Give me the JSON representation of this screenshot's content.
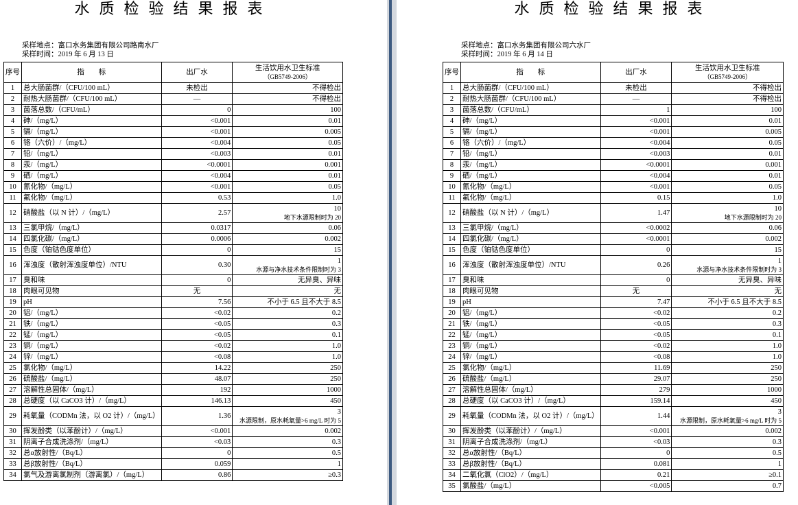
{
  "reports": [
    {
      "title": "水质检验结果报表",
      "location": "采样地点：富口水务集团有限公司路南水厂",
      "time": "采样时间：2019 年 6 月 13 日",
      "header": [
        "序号",
        "指　　标",
        "出厂水",
        [
          "生活饮用水卫生标准",
          "（GB5749-2006）"
        ]
      ],
      "rows": [
        [
          1,
          "总大肠菌群/（CFU/100 mL）",
          "未检出",
          "不得检出"
        ],
        [
          2,
          "耐热大肠菌群/（CFU/100 mL）",
          "—",
          "不得检出"
        ],
        [
          3,
          "菌落总数/（CFU/mL）",
          "0",
          "100"
        ],
        [
          4,
          "砷/（mg/L）",
          "<0.001",
          "0.01"
        ],
        [
          5,
          "镉/（mg/L）",
          "<0.001",
          "0.005"
        ],
        [
          6,
          "铬（六价）/（mg/L）",
          "<0.004",
          "0.05"
        ],
        [
          7,
          "铅/（mg/L）",
          "<0.003",
          "0.01"
        ],
        [
          8,
          "汞/（mg/L）",
          "<0.0001",
          "0.001"
        ],
        [
          9,
          "硒/（mg/L）",
          "<0.004",
          "0.01"
        ],
        [
          10,
          "氰化物/（mg/L）",
          "<0.001",
          "0.05"
        ],
        [
          11,
          "氟化物/（mg/L）",
          "0.53",
          "1.0"
        ],
        [
          12,
          "硝酸盐（以 N 计）/（mg/L）",
          "2.57",
          [
            "10",
            "地下水源限制时为 20"
          ]
        ],
        [
          13,
          "三氯甲烷/（mg/L）",
          "0.0317",
          "0.06"
        ],
        [
          14,
          "四氯化碳/（mg/L）",
          "0.0006",
          "0.002"
        ],
        [
          15,
          "色度（铂钴色度单位）",
          "0",
          "15"
        ],
        [
          16,
          "浑浊度（散射浑浊度单位）/NTU",
          "0.30",
          [
            "1",
            "水源与净水技术条件限制时为 3"
          ]
        ],
        [
          17,
          "臭和味",
          "0",
          "无异臭、异味"
        ],
        [
          18,
          "肉眼可见物",
          "无",
          "无"
        ],
        [
          19,
          "pH",
          "7.56",
          "不小于 6.5 且不大于 8.5"
        ],
        [
          20,
          "铝/（mg/L）",
          "<0.02",
          "0.2"
        ],
        [
          21,
          "铁/（mg/L）",
          "<0.05",
          "0.3"
        ],
        [
          22,
          "锰/（mg/L）",
          "<0.05",
          "0.1"
        ],
        [
          23,
          "铜/（mg/L）",
          "<0.02",
          "1.0"
        ],
        [
          24,
          "锌/（mg/L）",
          "<0.08",
          "1.0"
        ],
        [
          25,
          "氯化物/（mg/L）",
          "14.22",
          "250"
        ],
        [
          26,
          "硫酸盐/（mg/L）",
          "48.07",
          "250"
        ],
        [
          27,
          "溶解性总固体/（mg/L）",
          "192",
          "1000"
        ],
        [
          28,
          "总硬度（以 CaCO3 计）/（mg/L）",
          "146.13",
          "450"
        ],
        [
          29,
          "耗氧量（CODMn 法，以 O2 计）/（mg/L）",
          "1.36",
          [
            "3",
            "水源限制，原水耗氧量>6 mg/L 时为 5"
          ]
        ],
        [
          30,
          "挥发酚类（以苯酚计）/（mg/L）",
          "<0.001",
          "0.002"
        ],
        [
          31,
          "阴离子合成洗涤剂/（mg/L）",
          "<0.03",
          "0.3"
        ],
        [
          32,
          "总α放射性/（Bq/L）",
          "0",
          "0.5"
        ],
        [
          33,
          "总β放射性/（Bq/L）",
          "0.059",
          "1"
        ],
        [
          34,
          "氯气及游离氯制剂（游离氯）/（mg/L）",
          "0.86",
          "≥0.3"
        ]
      ]
    },
    {
      "title": "水质检验结果报表",
      "location": "采样地点：富口水务集团有限公司六水厂",
      "time": "采样时间：2019 年 6 月 14 日",
      "header": [
        "序号",
        "指　　标",
        "出厂水",
        [
          "生活饮用水卫生标准",
          "（GB5749-2006）"
        ]
      ],
      "rows": [
        [
          1,
          "总大肠菌群/（CFU/100 mL）",
          "未检出",
          "不得检出"
        ],
        [
          2,
          "耐热大肠菌群/（CFU/100 mL）",
          "—",
          "不得检出"
        ],
        [
          3,
          "菌落总数/（CFU/mL）",
          "1",
          "100"
        ],
        [
          4,
          "砷/（mg/L）",
          "<0.001",
          "0.01"
        ],
        [
          5,
          "镉/（mg/L）",
          "<0.001",
          "0.005"
        ],
        [
          6,
          "铬（六价）/（mg/L）",
          "<0.004",
          "0.05"
        ],
        [
          7,
          "铅/（mg/L）",
          "<0.003",
          "0.01"
        ],
        [
          8,
          "汞/（mg/L）",
          "<0.0001",
          "0.001"
        ],
        [
          9,
          "硒/（mg/L）",
          "<0.004",
          "0.01"
        ],
        [
          10,
          "氰化物/（mg/L）",
          "<0.001",
          "0.05"
        ],
        [
          11,
          "氟化物/（mg/L）",
          "0.15",
          "1.0"
        ],
        [
          12,
          "硝酸盐（以 N 计）/（mg/L）",
          "1.47",
          [
            "10",
            "地下水源限制时为 20"
          ]
        ],
        [
          13,
          "三氯甲烷/（mg/L）",
          "<0.0002",
          "0.06"
        ],
        [
          14,
          "四氯化碳/（mg/L）",
          "<0.0001",
          "0.002"
        ],
        [
          15,
          "色度（铂钴色度单位）",
          "0",
          "15"
        ],
        [
          16,
          "浑浊度（散射浑浊度单位）/NTU",
          "0.26",
          [
            "1",
            "水源与净水技术条件限制时为 3"
          ]
        ],
        [
          17,
          "臭和味",
          "0",
          "无异臭、异味"
        ],
        [
          18,
          "肉眼可见物",
          "无",
          "无"
        ],
        [
          19,
          "pH",
          "7.47",
          "不小于 6.5 且不大于 8.5"
        ],
        [
          20,
          "铝/（mg/L）",
          "<0.02",
          "0.2"
        ],
        [
          21,
          "铁/（mg/L）",
          "<0.05",
          "0.3"
        ],
        [
          22,
          "锰/（mg/L）",
          "<0.05",
          "0.1"
        ],
        [
          23,
          "铜/（mg/L）",
          "<0.02",
          "1.0"
        ],
        [
          24,
          "锌/（mg/L）",
          "<0.08",
          "1.0"
        ],
        [
          25,
          "氯化物/（mg/L）",
          "11.69",
          "250"
        ],
        [
          26,
          "硫酸盐/（mg/L）",
          "29.07",
          "250"
        ],
        [
          27,
          "溶解性总固体/（mg/L）",
          "279",
          "1000"
        ],
        [
          28,
          "总硬度（以 CaCO3 计）/（mg/L）",
          "159.14",
          "450"
        ],
        [
          29,
          "耗氧量（CODMn 法，以 O2 计）/（mg/L）",
          "1.44",
          [
            "3",
            "水源限制，原水耗氧量>6 mg/L 时为 5"
          ]
        ],
        [
          30,
          "挥发酚类（以苯酚计）/（mg/L）",
          "<0.001",
          "0.002"
        ],
        [
          31,
          "阴离子合成洗涤剂/（mg/L）",
          "<0.03",
          "0.3"
        ],
        [
          32,
          "总α放射性/（Bq/L）",
          "0",
          "0.5"
        ],
        [
          33,
          "总β放射性/（Bq/L）",
          "0.081",
          "1"
        ],
        [
          34,
          "二氧化氯（ClO2）/（mg/L）",
          "0.21",
          "≥0.1"
        ],
        [
          35,
          "氯酸盐/（mg/L）",
          "<0.005",
          "0.7"
        ]
      ]
    }
  ]
}
